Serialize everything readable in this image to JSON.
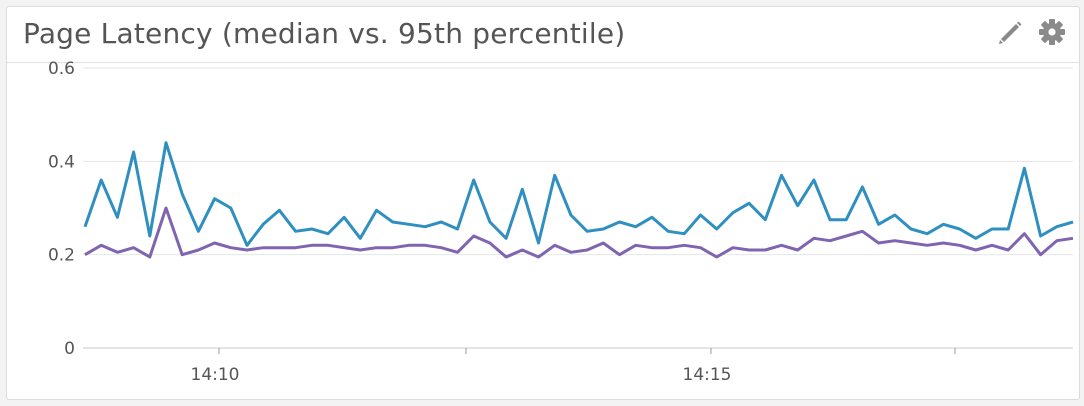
{
  "panel": {
    "title": "Page Latency (median vs. 95th percentile)",
    "edit_icon": "pencil-icon",
    "settings_icon": "gear-icon",
    "icon_color": "#8a8a8a"
  },
  "chart_data": {
    "type": "line",
    "title": "Page Latency (median vs. 95th percentile)",
    "xlabel": "",
    "ylabel": "",
    "x_tick_labels": [
      "14:10",
      "14:15"
    ],
    "y_tick_labels": [
      "0",
      "0.2",
      "0.4",
      "0.6"
    ],
    "ylim": [
      0,
      0.6
    ],
    "grid": true,
    "legend": "none",
    "x_interval_seconds": 10,
    "series": [
      {
        "color": "#2e8fc0",
        "values": [
          0.26,
          0.36,
          0.28,
          0.42,
          0.24,
          0.44,
          0.33,
          0.25,
          0.32,
          0.3,
          0.22,
          0.265,
          0.295,
          0.25,
          0.255,
          0.245,
          0.28,
          0.235,
          0.295,
          0.27,
          0.265,
          0.26,
          0.27,
          0.255,
          0.36,
          0.27,
          0.235,
          0.34,
          0.225,
          0.37,
          0.285,
          0.25,
          0.255,
          0.27,
          0.26,
          0.28,
          0.25,
          0.245,
          0.285,
          0.255,
          0.29,
          0.31,
          0.275,
          0.37,
          0.305,
          0.36,
          0.275,
          0.275,
          0.345,
          0.265,
          0.285,
          0.255,
          0.245,
          0.265,
          0.255,
          0.235,
          0.255,
          0.255,
          0.385,
          0.24,
          0.26,
          0.27
        ]
      },
      {
        "color": "#7f64b0",
        "values": [
          0.2,
          0.22,
          0.205,
          0.215,
          0.195,
          0.3,
          0.2,
          0.21,
          0.225,
          0.215,
          0.21,
          0.215,
          0.215,
          0.215,
          0.22,
          0.22,
          0.215,
          0.21,
          0.215,
          0.215,
          0.22,
          0.22,
          0.215,
          0.205,
          0.24,
          0.225,
          0.195,
          0.21,
          0.195,
          0.22,
          0.205,
          0.21,
          0.225,
          0.2,
          0.22,
          0.215,
          0.215,
          0.22,
          0.215,
          0.195,
          0.215,
          0.21,
          0.21,
          0.22,
          0.21,
          0.235,
          0.23,
          0.24,
          0.25,
          0.225,
          0.23,
          0.225,
          0.22,
          0.225,
          0.22,
          0.21,
          0.22,
          0.21,
          0.245,
          0.2,
          0.23,
          0.235
        ]
      }
    ]
  }
}
